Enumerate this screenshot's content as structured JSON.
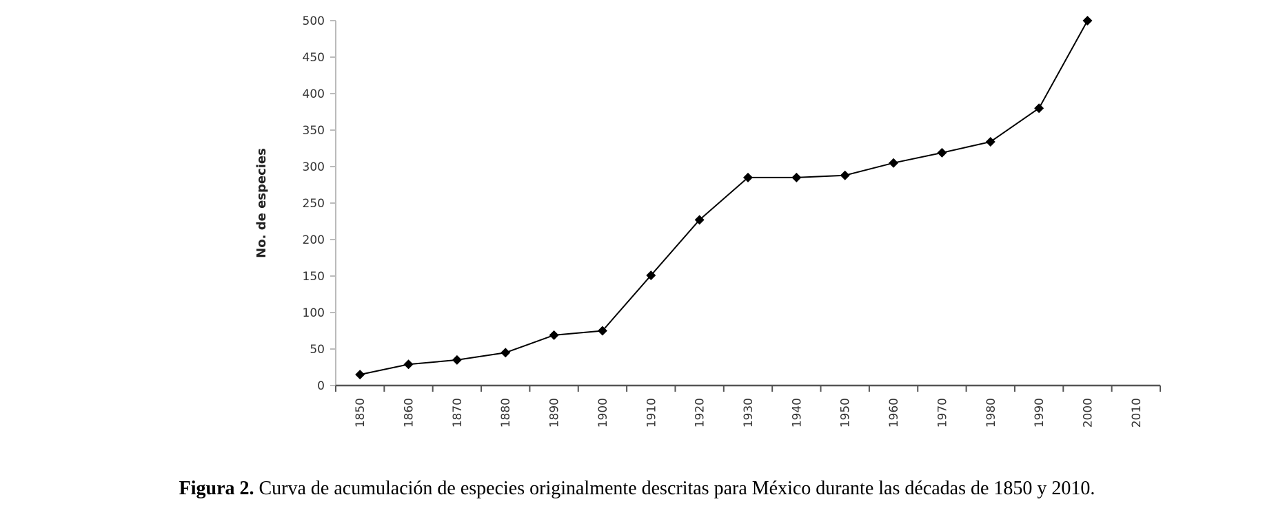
{
  "chart_data": {
    "type": "line",
    "title": "",
    "xlabel": "",
    "ylabel": "No. de especies",
    "categories": [
      "1850",
      "1860",
      "1870",
      "1880",
      "1890",
      "1900",
      "1910",
      "1920",
      "1930",
      "1940",
      "1950",
      "1960",
      "1970",
      "1980",
      "1990",
      "2000",
      "2010"
    ],
    "series": [
      {
        "values": [
          15,
          29,
          35,
          45,
          69,
          75,
          151,
          227,
          285,
          285,
          288,
          305,
          319,
          334,
          380,
          500,
          null
        ]
      }
    ],
    "yticks": [
      0,
      50,
      100,
      150,
      200,
      250,
      300,
      350,
      400,
      450,
      500
    ],
    "ylim": [
      0,
      500
    ],
    "grid": false,
    "legend": "none",
    "marker": "diamond",
    "line_color": "#000000"
  },
  "caption": {
    "label": "Figura 2.",
    "text": " Curva de acumulación de especies originalmente descritas para México durante las décadas de 1850 y 2010."
  }
}
